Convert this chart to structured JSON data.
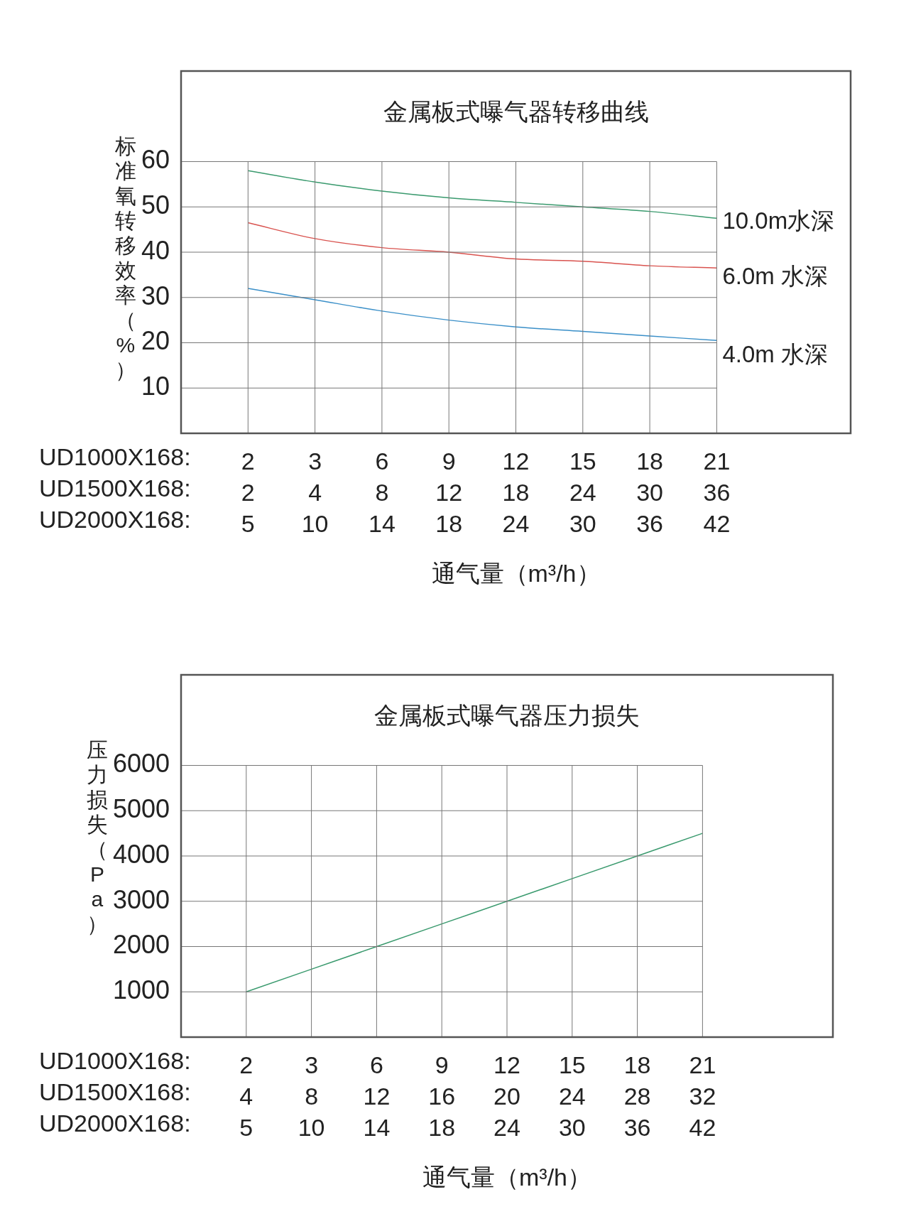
{
  "chart_data": [
    {
      "type": "line",
      "title": "金属板式曝气器转移曲线",
      "ylabel": "标准氧转移效率（%）",
      "xlabel": "通气量（m³/h）",
      "categories": [
        "2\n2\n5",
        "3\n4\n10",
        "6\n8\n14",
        "9\n12\n18",
        "12\n18\n24",
        "15\n24\n30",
        "18\n30\n36",
        "21\n36\n42"
      ],
      "annotations": [
        "UD1000X168:",
        "UD1500X168:",
        "UD2000X168:"
      ],
      "ylim": [
        0,
        80
      ],
      "yticks": [
        10,
        20,
        30,
        40,
        50,
        60
      ],
      "grid": true,
      "legend": false,
      "marker": "none",
      "series": [
        {
          "name": "10.0m水深",
          "color": "#3a9a6e",
          "values": [
            58,
            55.5,
            53.5,
            52,
            51,
            50,
            49,
            47.5
          ]
        },
        {
          "name": "6.0m 水深",
          "color": "#d9534f",
          "values": [
            46.5,
            43,
            41,
            40,
            38.5,
            38,
            37,
            36.5
          ]
        },
        {
          "name": "4.0m 水深",
          "color": "#3a8fc8",
          "values": [
            32,
            29.5,
            27,
            25,
            23.5,
            22.5,
            21.5,
            20.5
          ]
        }
      ]
    },
    {
      "type": "line",
      "title": "金属板式曝气器压力损失",
      "ylabel": "压力损失（Pa）",
      "xlabel": "通气量（m³/h）",
      "categories": [
        "2\n4\n5",
        "3\n8\n10",
        "6\n12\n14",
        "9\n16\n18",
        "12\n20\n24",
        "15\n24\n30",
        "18\n28\n36",
        "21\n32\n42"
      ],
      "annotations": [
        "UD1000X168:",
        "UD1500X168:",
        "UD2000X168:"
      ],
      "ylim": [
        0,
        8000
      ],
      "yticks": [
        1000,
        2000,
        3000,
        4000,
        5000,
        6000
      ],
      "grid": true,
      "legend": false,
      "marker": "none",
      "series": [
        {
          "color": "#3a9a6e",
          "values": [
            1000,
            1500,
            2000,
            2500,
            3000,
            3500,
            4000,
            4500
          ]
        }
      ]
    }
  ]
}
